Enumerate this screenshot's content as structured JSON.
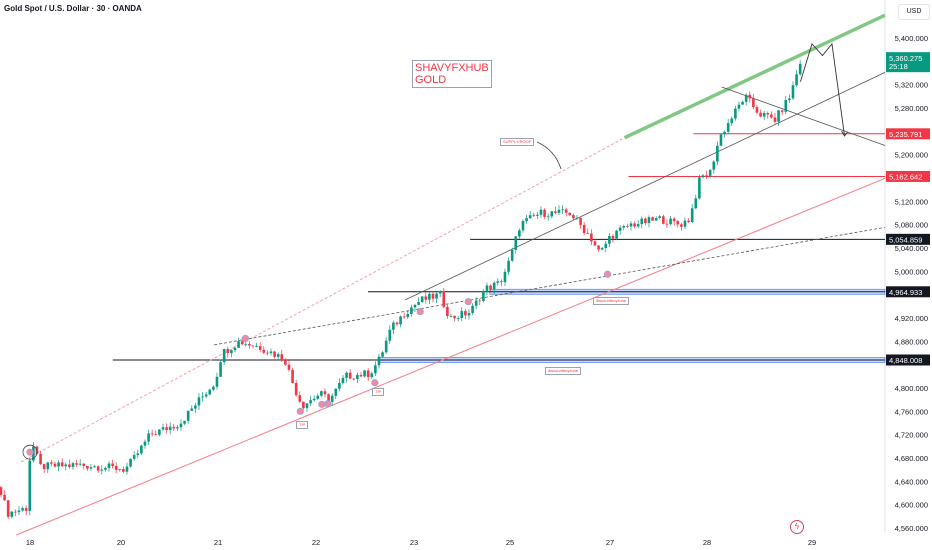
{
  "header": {
    "title": "Gold Spot / U.S. Dollar · 30 · OANDA",
    "currency_button": "USD"
  },
  "annotations": {
    "brand_line1": "SHAVYFXHUB",
    "brand_line2": "GOLD",
    "supply_label": "SUPPLY/ROOF",
    "discount_label_1": "discountbuyzone",
    "discount_label_2": "discountbuyzone",
    "tp_label_1": "T/P",
    "tp_label_2": "T/P"
  },
  "colors": {
    "up": "#089981",
    "down": "#f23645",
    "green_line": "#81c784",
    "red_line": "#f23645",
    "zone": "#5b8def",
    "gray_line": "#555555"
  },
  "chart_data": {
    "type": "candlestick",
    "symbol": "Gold Spot / U.S. Dollar",
    "interval": "30",
    "ylim": [
      4540,
      5470
    ],
    "y_ticks": [
      5400,
      5320,
      5280,
      5200,
      5120,
      5080,
      5040,
      5000,
      4920,
      4880,
      4800,
      4760,
      4720,
      4680,
      4640,
      4600,
      4560
    ],
    "x_ticks": [
      {
        "day": 18,
        "label": "18"
      },
      {
        "day": 20,
        "label": "20"
      },
      {
        "day": 21,
        "label": "21"
      },
      {
        "day": 22,
        "label": "22"
      },
      {
        "day": 23,
        "label": "23"
      },
      {
        "day": 25,
        "label": "25"
      },
      {
        "day": 27,
        "label": "27"
      },
      {
        "day": 28,
        "label": "28"
      },
      {
        "day": 29,
        "label": "29"
      }
    ],
    "price_path": [
      [
        17.34,
        4630
      ],
      [
        17.5,
        4585
      ],
      [
        17.96,
        4595
      ],
      [
        18.0,
        4690
      ],
      [
        18.07,
        4700
      ],
      [
        18.22,
        4665
      ],
      [
        19.1,
        4668
      ],
      [
        19.99,
        4662
      ],
      [
        20.04,
        4660
      ],
      [
        20.14,
        4680
      ],
      [
        20.3,
        4720
      ],
      [
        20.61,
        4740
      ],
      [
        20.81,
        4780
      ],
      [
        20.97,
        4810
      ],
      [
        21.04,
        4860
      ],
      [
        21.22,
        4880
      ],
      [
        21.43,
        4870
      ],
      [
        21.68,
        4850
      ],
      [
        21.78,
        4800
      ],
      [
        21.86,
        4770
      ],
      [
        22.04,
        4790
      ],
      [
        22.14,
        4780
      ],
      [
        22.3,
        4820
      ],
      [
        22.55,
        4825
      ],
      [
        22.65,
        4850
      ],
      [
        22.76,
        4900
      ],
      [
        22.91,
        4930
      ],
      [
        23.13,
        4950
      ],
      [
        23.54,
        4960
      ],
      [
        23.75,
        4920
      ],
      [
        24.17,
        4930
      ],
      [
        24.48,
        4970
      ],
      [
        24.79,
        4980
      ],
      [
        25.0,
        5020
      ],
      [
        25.2,
        5080
      ],
      [
        25.6,
        5100
      ],
      [
        26.2,
        5100
      ],
      [
        26.6,
        5060
      ],
      [
        26.8,
        5030
      ],
      [
        27.0,
        5060
      ],
      [
        27.21,
        5080
      ],
      [
        27.52,
        5090
      ],
      [
        27.72,
        5080
      ],
      [
        27.82,
        5090
      ],
      [
        27.93,
        5160
      ],
      [
        28.03,
        5170
      ],
      [
        28.12,
        5230
      ],
      [
        28.36,
        5300
      ],
      [
        28.5,
        5270
      ],
      [
        28.65,
        5260
      ],
      [
        28.79,
        5300
      ],
      [
        28.84,
        5330
      ],
      [
        28.89,
        5360.275
      ]
    ],
    "current_price": 5360.275,
    "countdown": "25:18",
    "levels": [
      {
        "price": 5235.791,
        "label": "5,235.791",
        "color": "#f23645",
        "from_day": 27.86
      },
      {
        "price": 5162.642,
        "label": "5,162.642",
        "color": "#f23645",
        "from_day": 27.19
      },
      {
        "price": 5054.859,
        "label": "5,054.859",
        "color": "#131722",
        "from_day": 24.17
      },
      {
        "price": 4964.933,
        "label": "4,964.933",
        "color": "#131722",
        "from_day": 22.53,
        "zone_from_day": 24.58
      },
      {
        "price": 4848.008,
        "label": "4,848.008",
        "color": "#131722",
        "from_day": 19.82,
        "zone_from_day": 22.65
      }
    ],
    "trendlines": [
      {
        "kind": "green-thick",
        "from": [
          27.15,
          5229
        ],
        "to": [
          30.0,
          5465
        ]
      },
      {
        "kind": "red-dashed",
        "from": [
          17.8,
          4673
        ],
        "to": [
          27.15,
          5229
        ]
      },
      {
        "kind": "red-solid",
        "from": [
          17.7,
          4548
        ],
        "to": [
          30.0,
          5182
        ]
      },
      {
        "kind": "gray-solid",
        "from": [
          22.91,
          4951
        ],
        "to": [
          30.0,
          5367
        ]
      },
      {
        "kind": "gray-dashed",
        "from": [
          20.96,
          4874
        ],
        "to": [
          30.0,
          5085
        ]
      },
      {
        "kind": "gray-solid",
        "from": [
          28.14,
          5316
        ],
        "to": [
          30.0,
          5196
        ]
      }
    ],
    "projection": [
      [
        28.89,
        5325
      ],
      [
        29.0,
        5390
      ],
      [
        29.1,
        5370
      ],
      [
        29.19,
        5390
      ],
      [
        29.31,
        5232
      ]
    ],
    "touch_points": [
      [
        18.0,
        4690
      ],
      [
        21.28,
        4885
      ],
      [
        21.84,
        4760
      ],
      [
        22.06,
        4772
      ],
      [
        22.12,
        4773
      ],
      [
        22.6,
        4809
      ],
      [
        23.13,
        4931
      ],
      [
        24.13,
        4948
      ],
      [
        26.95,
        4995
      ]
    ]
  }
}
